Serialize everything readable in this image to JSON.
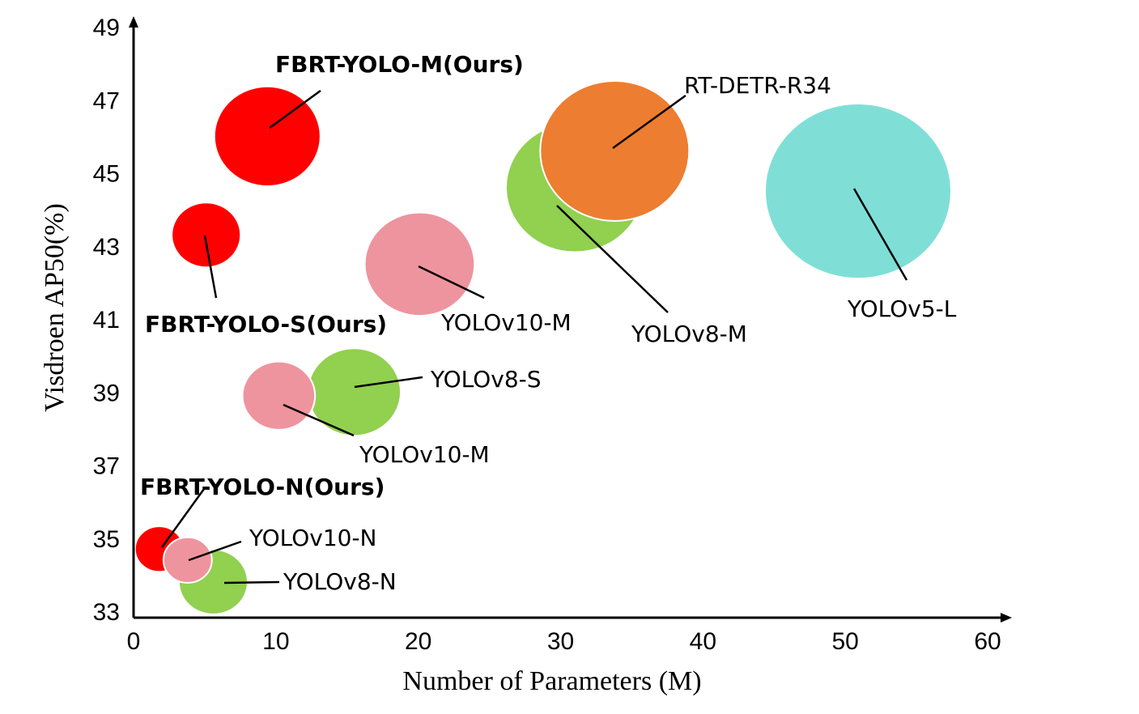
{
  "chart_data": {
    "type": "bubble",
    "title": "",
    "xlabel": "Number of Parameters (M)",
    "ylabel": "Visdroen AP50(%)",
    "xlim": [
      0,
      60
    ],
    "ylim": [
      33,
      49
    ],
    "xticks": [
      0,
      10,
      20,
      30,
      40,
      50,
      60
    ],
    "yticks": [
      33,
      35,
      37,
      39,
      41,
      43,
      45,
      47,
      49
    ],
    "grid": false,
    "legend": "none",
    "size_note_relative": true,
    "points": [
      {
        "label": "FBRT-YOLO-N(Ours)",
        "x": 1.8,
        "y": 34.7,
        "size": 0.26,
        "color": "#FF0000",
        "bold": true
      },
      {
        "label": "YOLOv8-N",
        "x": 5.6,
        "y": 33.8,
        "size": 0.37,
        "color": "#92D050",
        "bold": false
      },
      {
        "label": "YOLOv10-N",
        "x": 3.8,
        "y": 34.4,
        "size": 0.26,
        "color": "#EE949E",
        "bold": false
      },
      {
        "label": "YOLOv8-S",
        "x": 15.5,
        "y": 39.0,
        "size": 0.5,
        "color": "#92D050",
        "bold": false
      },
      {
        "label": "YOLOv10-M",
        "x": 10.2,
        "y": 38.9,
        "size": 0.39,
        "color": "#EE949E",
        "bold": false
      },
      {
        "label": "FBRT-YOLO-S(Ours)",
        "x": 5.1,
        "y": 43.3,
        "size": 0.37,
        "color": "#FF0000",
        "bold": true
      },
      {
        "label": "FBRT-YOLO-M(Ours)",
        "x": 9.4,
        "y": 46.0,
        "size": 0.57,
        "color": "#FF0000",
        "bold": true
      },
      {
        "label": "YOLOv10-M",
        "x": 20.1,
        "y": 42.5,
        "size": 0.59,
        "color": "#EE949E",
        "bold": false
      },
      {
        "label": "YOLOv8-M",
        "x": 31.0,
        "y": 44.6,
        "size": 0.74,
        "color": "#92D050",
        "bold": false
      },
      {
        "label": "RT-DETR-R34",
        "x": 33.8,
        "y": 45.6,
        "size": 0.8,
        "color": "#ED7D31",
        "bold": false
      },
      {
        "label": "YOLOv5-L",
        "x": 50.9,
        "y": 44.5,
        "size": 1.0,
        "color": "#7FDFD7",
        "bold": false
      }
    ]
  }
}
